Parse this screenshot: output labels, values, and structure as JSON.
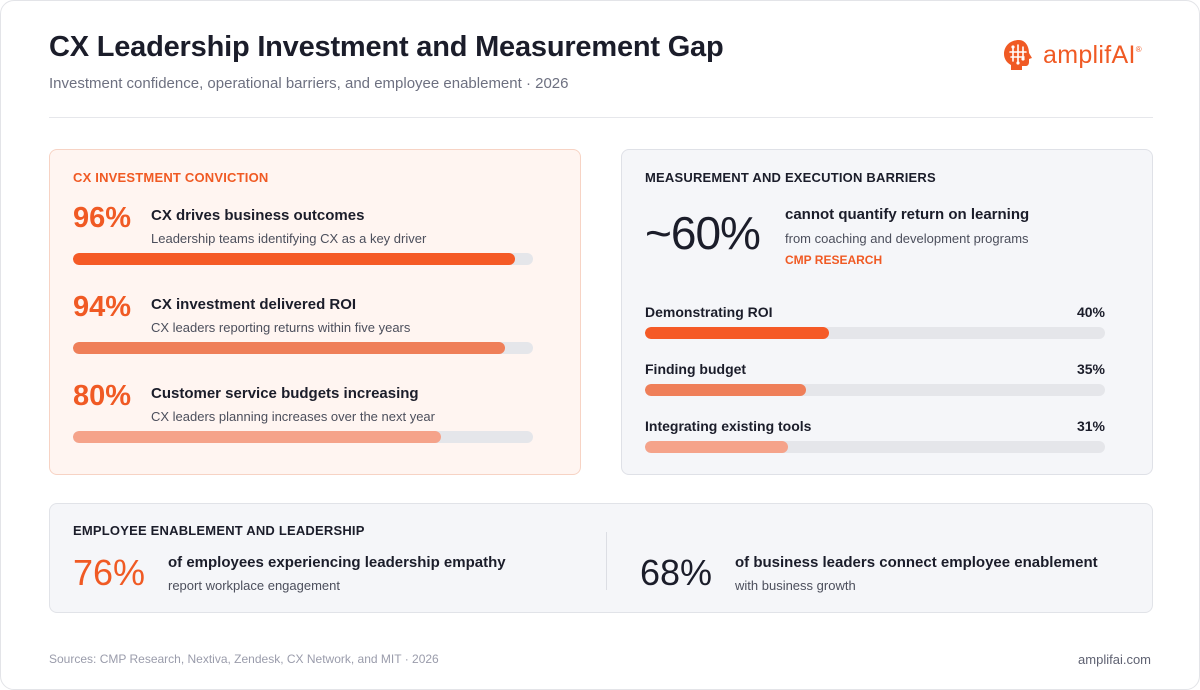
{
  "header": {
    "title": "CX Leadership Investment and Measurement Gap",
    "subtitle": "Investment confidence, operational barriers, and employee enablement · 2026",
    "logo_text": "amplifAI",
    "logo_mark": "®"
  },
  "investment": {
    "label": "CX INVESTMENT CONVICTION",
    "items": [
      {
        "value": "96%",
        "title": "CX drives business outcomes",
        "desc": "Leadership teams identifying CX as a key driver",
        "fraction": 0.96,
        "color": "#f55a26"
      },
      {
        "value": "94%",
        "title": "CX investment delivered ROI",
        "desc": "CX leaders reporting returns within five years",
        "fraction": 0.94,
        "color": "#ef7f59"
      },
      {
        "value": "80%",
        "title": "Customer service budgets increasing",
        "desc": "CX leaders planning increases over the next year",
        "fraction": 0.8,
        "color": "#f5a38a"
      }
    ]
  },
  "barriers": {
    "label": "MEASUREMENT AND EXECUTION BARRIERS",
    "headline_value": "~60%",
    "headline_title": "cannot quantify return on learning",
    "headline_desc": "from coaching and development programs",
    "headline_source": "CMP RESEARCH",
    "items": [
      {
        "label": "Demonstrating ROI",
        "value": "40%",
        "fraction": 0.4,
        "color": "#f55a26"
      },
      {
        "label": "Finding budget",
        "value": "35%",
        "fraction": 0.35,
        "color": "#ef7f59"
      },
      {
        "label": "Integrating existing tools",
        "value": "31%",
        "fraction": 0.31,
        "color": "#f5a38a"
      }
    ]
  },
  "enablement": {
    "label": "EMPLOYEE ENABLEMENT AND LEADERSHIP",
    "left": {
      "value": "76%",
      "title": "of employees experiencing leadership empathy",
      "desc": "report workplace engagement"
    },
    "right": {
      "value": "68%",
      "title": "of business leaders connect employee enablement",
      "desc": "with business growth"
    }
  },
  "footer": {
    "sources": "Sources: CMP Research, Nextiva, Zendesk, CX Network, and MIT · 2026",
    "url": "amplifai.com"
  },
  "colors": {
    "accent": "#f05a24",
    "track": "#e5e6ea",
    "text_dark": "#1b1d2a"
  },
  "chart_data": [
    {
      "type": "bar",
      "title": "CX INVESTMENT CONVICTION",
      "categories": [
        "CX drives business outcomes",
        "CX investment delivered ROI",
        "Customer service budgets increasing"
      ],
      "values": [
        96,
        94,
        80
      ],
      "ylim": [
        0,
        100
      ]
    },
    {
      "type": "bar",
      "title": "MEASUREMENT AND EXECUTION BARRIERS",
      "categories": [
        "Demonstrating ROI",
        "Finding budget",
        "Integrating existing tools"
      ],
      "values": [
        40,
        35,
        31
      ],
      "ylim": [
        0,
        100
      ]
    }
  ]
}
